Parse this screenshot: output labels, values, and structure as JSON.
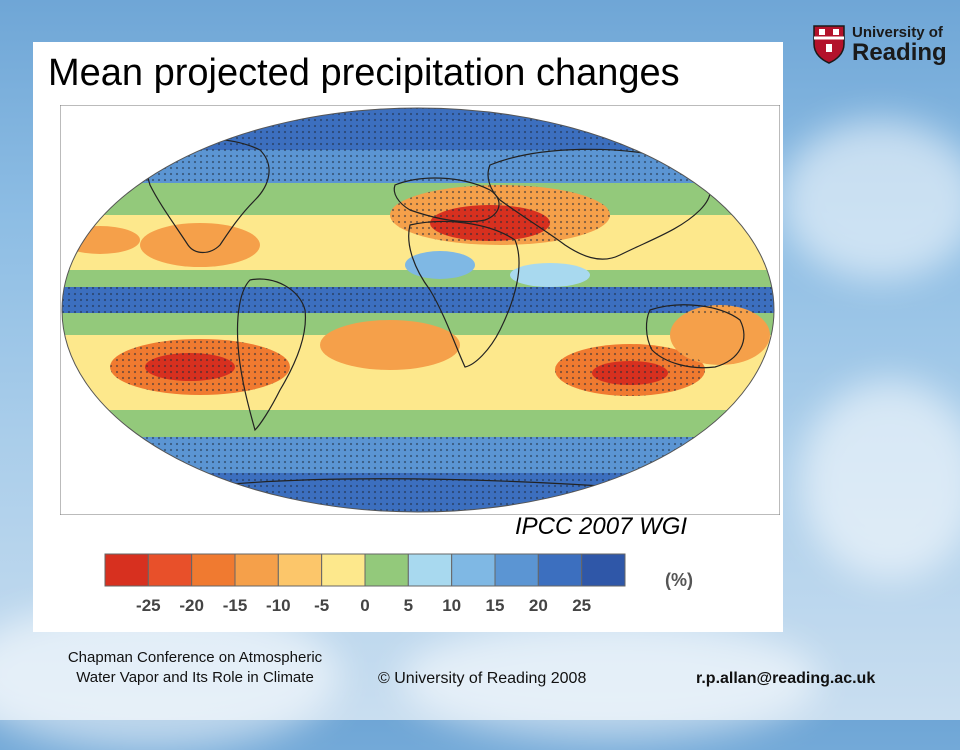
{
  "slide": {
    "title": "Mean projected precipitation changes",
    "source": "IPCC 2007 WGI"
  },
  "legend": {
    "unit": "(%)",
    "ticks": [
      "-25",
      "-20",
      "-15",
      "-10",
      "-5",
      "0",
      "5",
      "10",
      "15",
      "20",
      "25"
    ],
    "colors": [
      "#d7301f",
      "#e8502a",
      "#f07a30",
      "#f5a04a",
      "#fcc66a",
      "#fde88c",
      "#93c97b",
      "#a8d9ef",
      "#7fb8e4",
      "#5b95d3",
      "#3c6fbf",
      "#2f57a8"
    ]
  },
  "map": {
    "description_colors": {
      "wet": "#3c6fbf",
      "moist": "#7fb8e4",
      "neutral": "#93c97b",
      "slightly_dry": "#fde88c",
      "dry": "#f5a04a",
      "very_dry": "#d7301f"
    }
  },
  "logo": {
    "line1": "University of",
    "line2": "Reading"
  },
  "footer": {
    "conference_line1": "Chapman Conference on Atmospheric",
    "conference_line2": "Water Vapor and Its Role in Climate",
    "copyright": "© University of Reading 2008",
    "email": "r.p.allan@reading.ac.uk"
  }
}
